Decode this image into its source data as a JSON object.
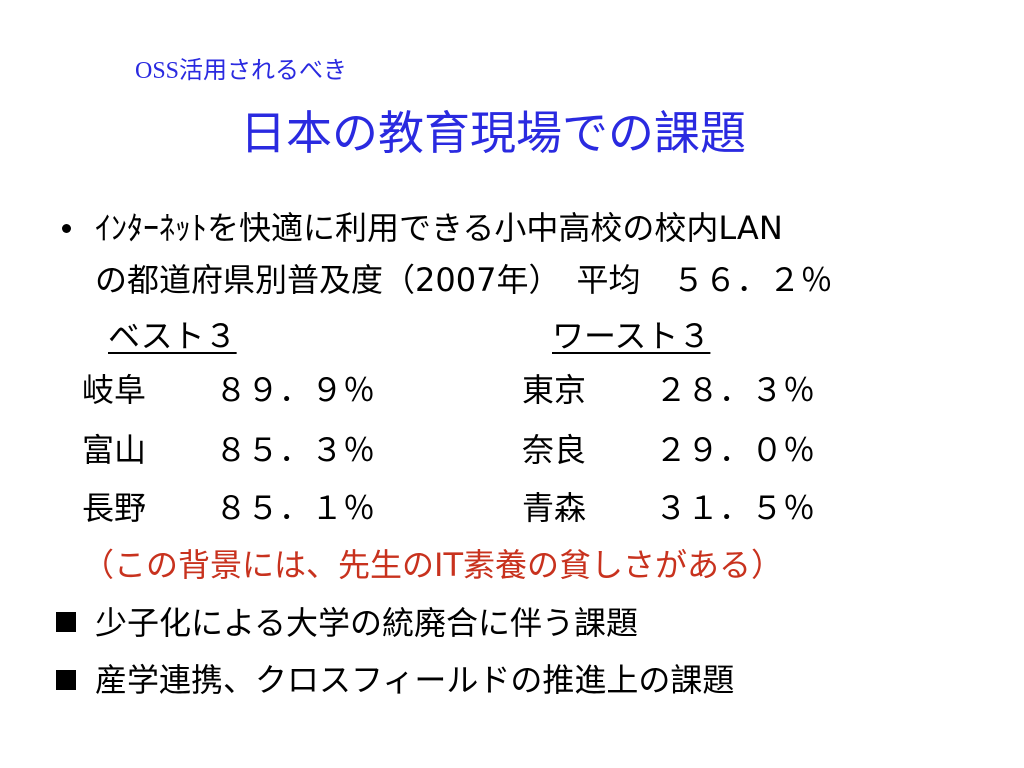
{
  "header": {
    "subtitle": "OSS活用されるべき",
    "title": "日本の教育現場での課題"
  },
  "bullet": {
    "lines": [
      "ｲﾝﾀｰﾈｯﾄを快適に利用できる小中高校の校内LAN",
      "の都道府県別普及度（2007年）　平均　５６．２％"
    ]
  },
  "ranking": {
    "best": {
      "heading": "ベスト３",
      "rows": [
        [
          "岐阜",
          "８９．９％"
        ],
        [
          "富山",
          "８５．３％"
        ],
        [
          "長野",
          "８５．１％"
        ]
      ]
    },
    "worst": {
      "heading": "ワースト３",
      "rows": [
        [
          "東京",
          "２８．３％"
        ],
        [
          "奈良",
          "２９．０％"
        ],
        [
          "青森",
          "３１．５％"
        ]
      ]
    }
  },
  "note": "（この背景には、先生のIT素養の貧しさがある）",
  "square_bullets": [
    "少子化による大学の統廃合に伴う課題",
    "産学連携、クロスフィールドの推進上の課題"
  ]
}
